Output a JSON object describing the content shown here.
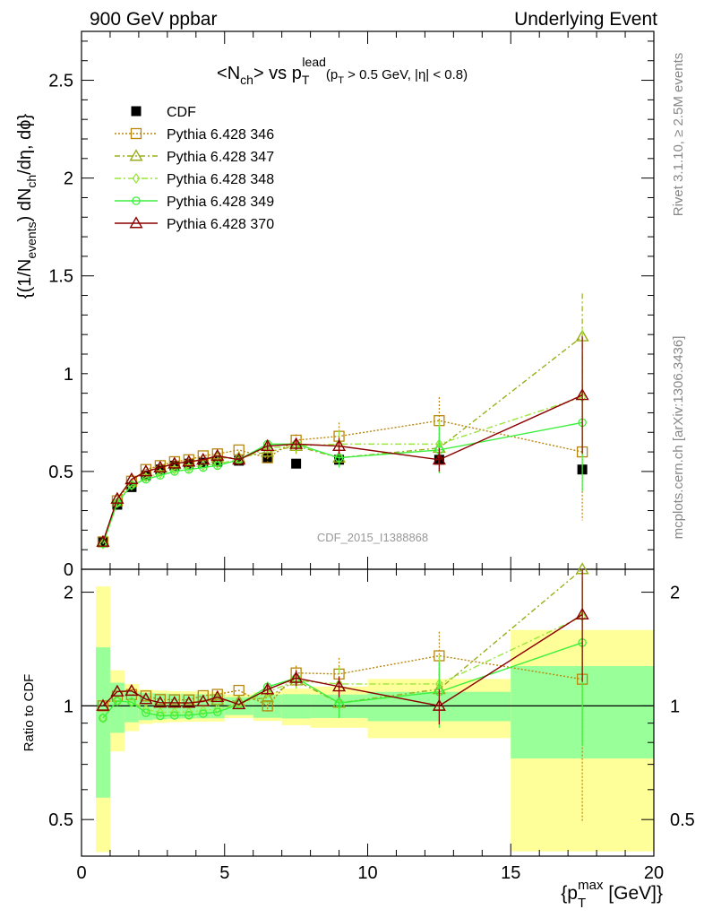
{
  "header": {
    "left": "900 GeV ppbar",
    "right": "Underlying Event"
  },
  "title": {
    "lt": "<",
    "n": "N",
    "n_sub": "ch",
    "gt_vs": "> vs p",
    "pt_sub": "T",
    "pt_sup": "lead",
    "cut_p": "(p",
    "cut_sub": "T",
    "cut_rest": " > 0.5 GeV, |",
    "eta": "η",
    "cut_end": "| < 0.8)"
  },
  "side_labels": {
    "rivet": "Rivet 3.1.10, ≥ 2.5M events",
    "mcplots": "mcplots.cern.ch [arXiv:1306.3436]"
  },
  "watermark": "CDF_2015_I1388868",
  "ylabel_main": {
    "a": "{(1/N",
    "a_sub": "events",
    "b": ") dN",
    "b_sub": "ch",
    "c": "/dη, dϕ}"
  },
  "ylabel_ratio": "Ratio to CDF",
  "xlabel": {
    "a": "{p",
    "sub": "T",
    "sup": "max",
    "b": " [GeV]}"
  },
  "colors": {
    "cdf": "#000000",
    "p346": "#b8860b",
    "p347": "#9aad1a",
    "p348": "#9ae63c",
    "p349": "#3cf03c",
    "p370": "#8b0000",
    "band_inner": "#99ff99",
    "band_outer": "#ffff99"
  },
  "chart_data": {
    "type": "scatter",
    "x_range": [
      0,
      20
    ],
    "main_ylim": [
      0,
      2.75
    ],
    "ratio_ylim": [
      0.4,
      2.3
    ],
    "ratio_log": true,
    "x_ticks": [
      0,
      5,
      10,
      15,
      20
    ],
    "main_y_ticks": [
      0.5,
      1,
      1.5,
      2,
      2.5
    ],
    "ratio_y_ticks": [
      0.5,
      1,
      2
    ],
    "x_ticklabels": [
      "0",
      "5",
      "10",
      "15",
      "20"
    ],
    "main_y_ticklabels": [
      "0.5",
      "1",
      "1.5",
      "2",
      "2.5"
    ],
    "ratio_y_ticklabels": [
      "0.5",
      "1",
      "2"
    ],
    "x": [
      0.75,
      1.25,
      1.75,
      2.25,
      2.75,
      3.25,
      3.75,
      4.25,
      4.75,
      5.5,
      6.5,
      7.5,
      9.0,
      12.5,
      17.5
    ],
    "bin_edges": [
      0.5,
      1.0,
      1.5,
      2.0,
      2.5,
      3.0,
      3.5,
      4.0,
      4.5,
      5.0,
      6.0,
      7.0,
      8.0,
      10.0,
      15.0,
      20.0
    ],
    "data_series": {
      "name": "CDF",
      "values": [
        0.14,
        0.33,
        0.42,
        0.48,
        0.51,
        0.53,
        0.54,
        0.545,
        0.55,
        0.555,
        0.57,
        0.54,
        0.56,
        0.56,
        0.51
      ],
      "band_inner": [
        0.06,
        0.05,
        0.04,
        0.04,
        0.04,
        0.04,
        0.04,
        0.04,
        0.04,
        0.03,
        0.04,
        0.04,
        0.04,
        0.05,
        0.14
      ],
      "band_outer": [
        0.15,
        0.08,
        0.06,
        0.05,
        0.05,
        0.05,
        0.05,
        0.05,
        0.05,
        0.04,
        0.05,
        0.06,
        0.07,
        0.1,
        0.3
      ]
    },
    "series": [
      {
        "name": "Pythia 6.428 346",
        "key": "p346",
        "marker": "square",
        "dash": "2,2",
        "values": [
          0.14,
          0.35,
          0.45,
          0.51,
          0.53,
          0.55,
          0.56,
          0.58,
          0.59,
          0.61,
          0.57,
          0.66,
          0.68,
          0.76,
          0.6
        ],
        "err": [
          0.005,
          0.005,
          0.005,
          0.005,
          0.005,
          0.01,
          0.01,
          0.01,
          0.01,
          0.01,
          0.02,
          0.03,
          0.07,
          0.12,
          0.35
        ]
      },
      {
        "name": "Pythia 6.428 347",
        "key": "p347",
        "marker": "triangle",
        "dash": "6,3,2,3",
        "values": [
          0.14,
          0.36,
          0.46,
          0.5,
          0.52,
          0.54,
          0.55,
          0.56,
          0.57,
          0.57,
          0.6,
          0.63,
          0.57,
          0.62,
          1.19
        ],
        "err": [
          0.005,
          0.005,
          0.005,
          0.005,
          0.005,
          0.01,
          0.01,
          0.01,
          0.01,
          0.01,
          0.02,
          0.04,
          0.05,
          0.12,
          0.22
        ]
      },
      {
        "name": "Pythia 6.428 348",
        "key": "p348",
        "marker": "diamond",
        "dash": "7,3,2,3",
        "values": [
          0.13,
          0.34,
          0.43,
          0.47,
          0.49,
          0.51,
          0.52,
          0.53,
          0.54,
          0.56,
          0.62,
          0.63,
          0.64,
          0.64,
          0.88
        ],
        "err": [
          0.005,
          0.005,
          0.005,
          0.005,
          0.005,
          0.01,
          0.01,
          0.01,
          0.01,
          0.01,
          0.02,
          0.03,
          0.07,
          0.12,
          0.35
        ]
      },
      {
        "name": "Pythia 6.428 349",
        "key": "p349",
        "marker": "circle",
        "dash": "",
        "values": [
          0.13,
          0.34,
          0.43,
          0.46,
          0.48,
          0.5,
          0.51,
          0.52,
          0.53,
          0.56,
          0.64,
          0.64,
          0.57,
          0.61,
          0.75
        ],
        "err": [
          0.005,
          0.005,
          0.005,
          0.005,
          0.005,
          0.01,
          0.01,
          0.01,
          0.01,
          0.01,
          0.02,
          0.03,
          0.05,
          0.12,
          0.35
        ]
      },
      {
        "name": "Pythia 6.428 370",
        "key": "p370",
        "marker": "triangle",
        "dash": "",
        "values": [
          0.14,
          0.36,
          0.46,
          0.5,
          0.52,
          0.54,
          0.55,
          0.56,
          0.58,
          0.56,
          0.63,
          0.64,
          0.63,
          0.56,
          0.89
        ],
        "err": [
          0.005,
          0.005,
          0.005,
          0.005,
          0.005,
          0.01,
          0.01,
          0.01,
          0.01,
          0.01,
          0.02,
          0.03,
          0.04,
          0.06,
          0.3
        ]
      }
    ]
  }
}
